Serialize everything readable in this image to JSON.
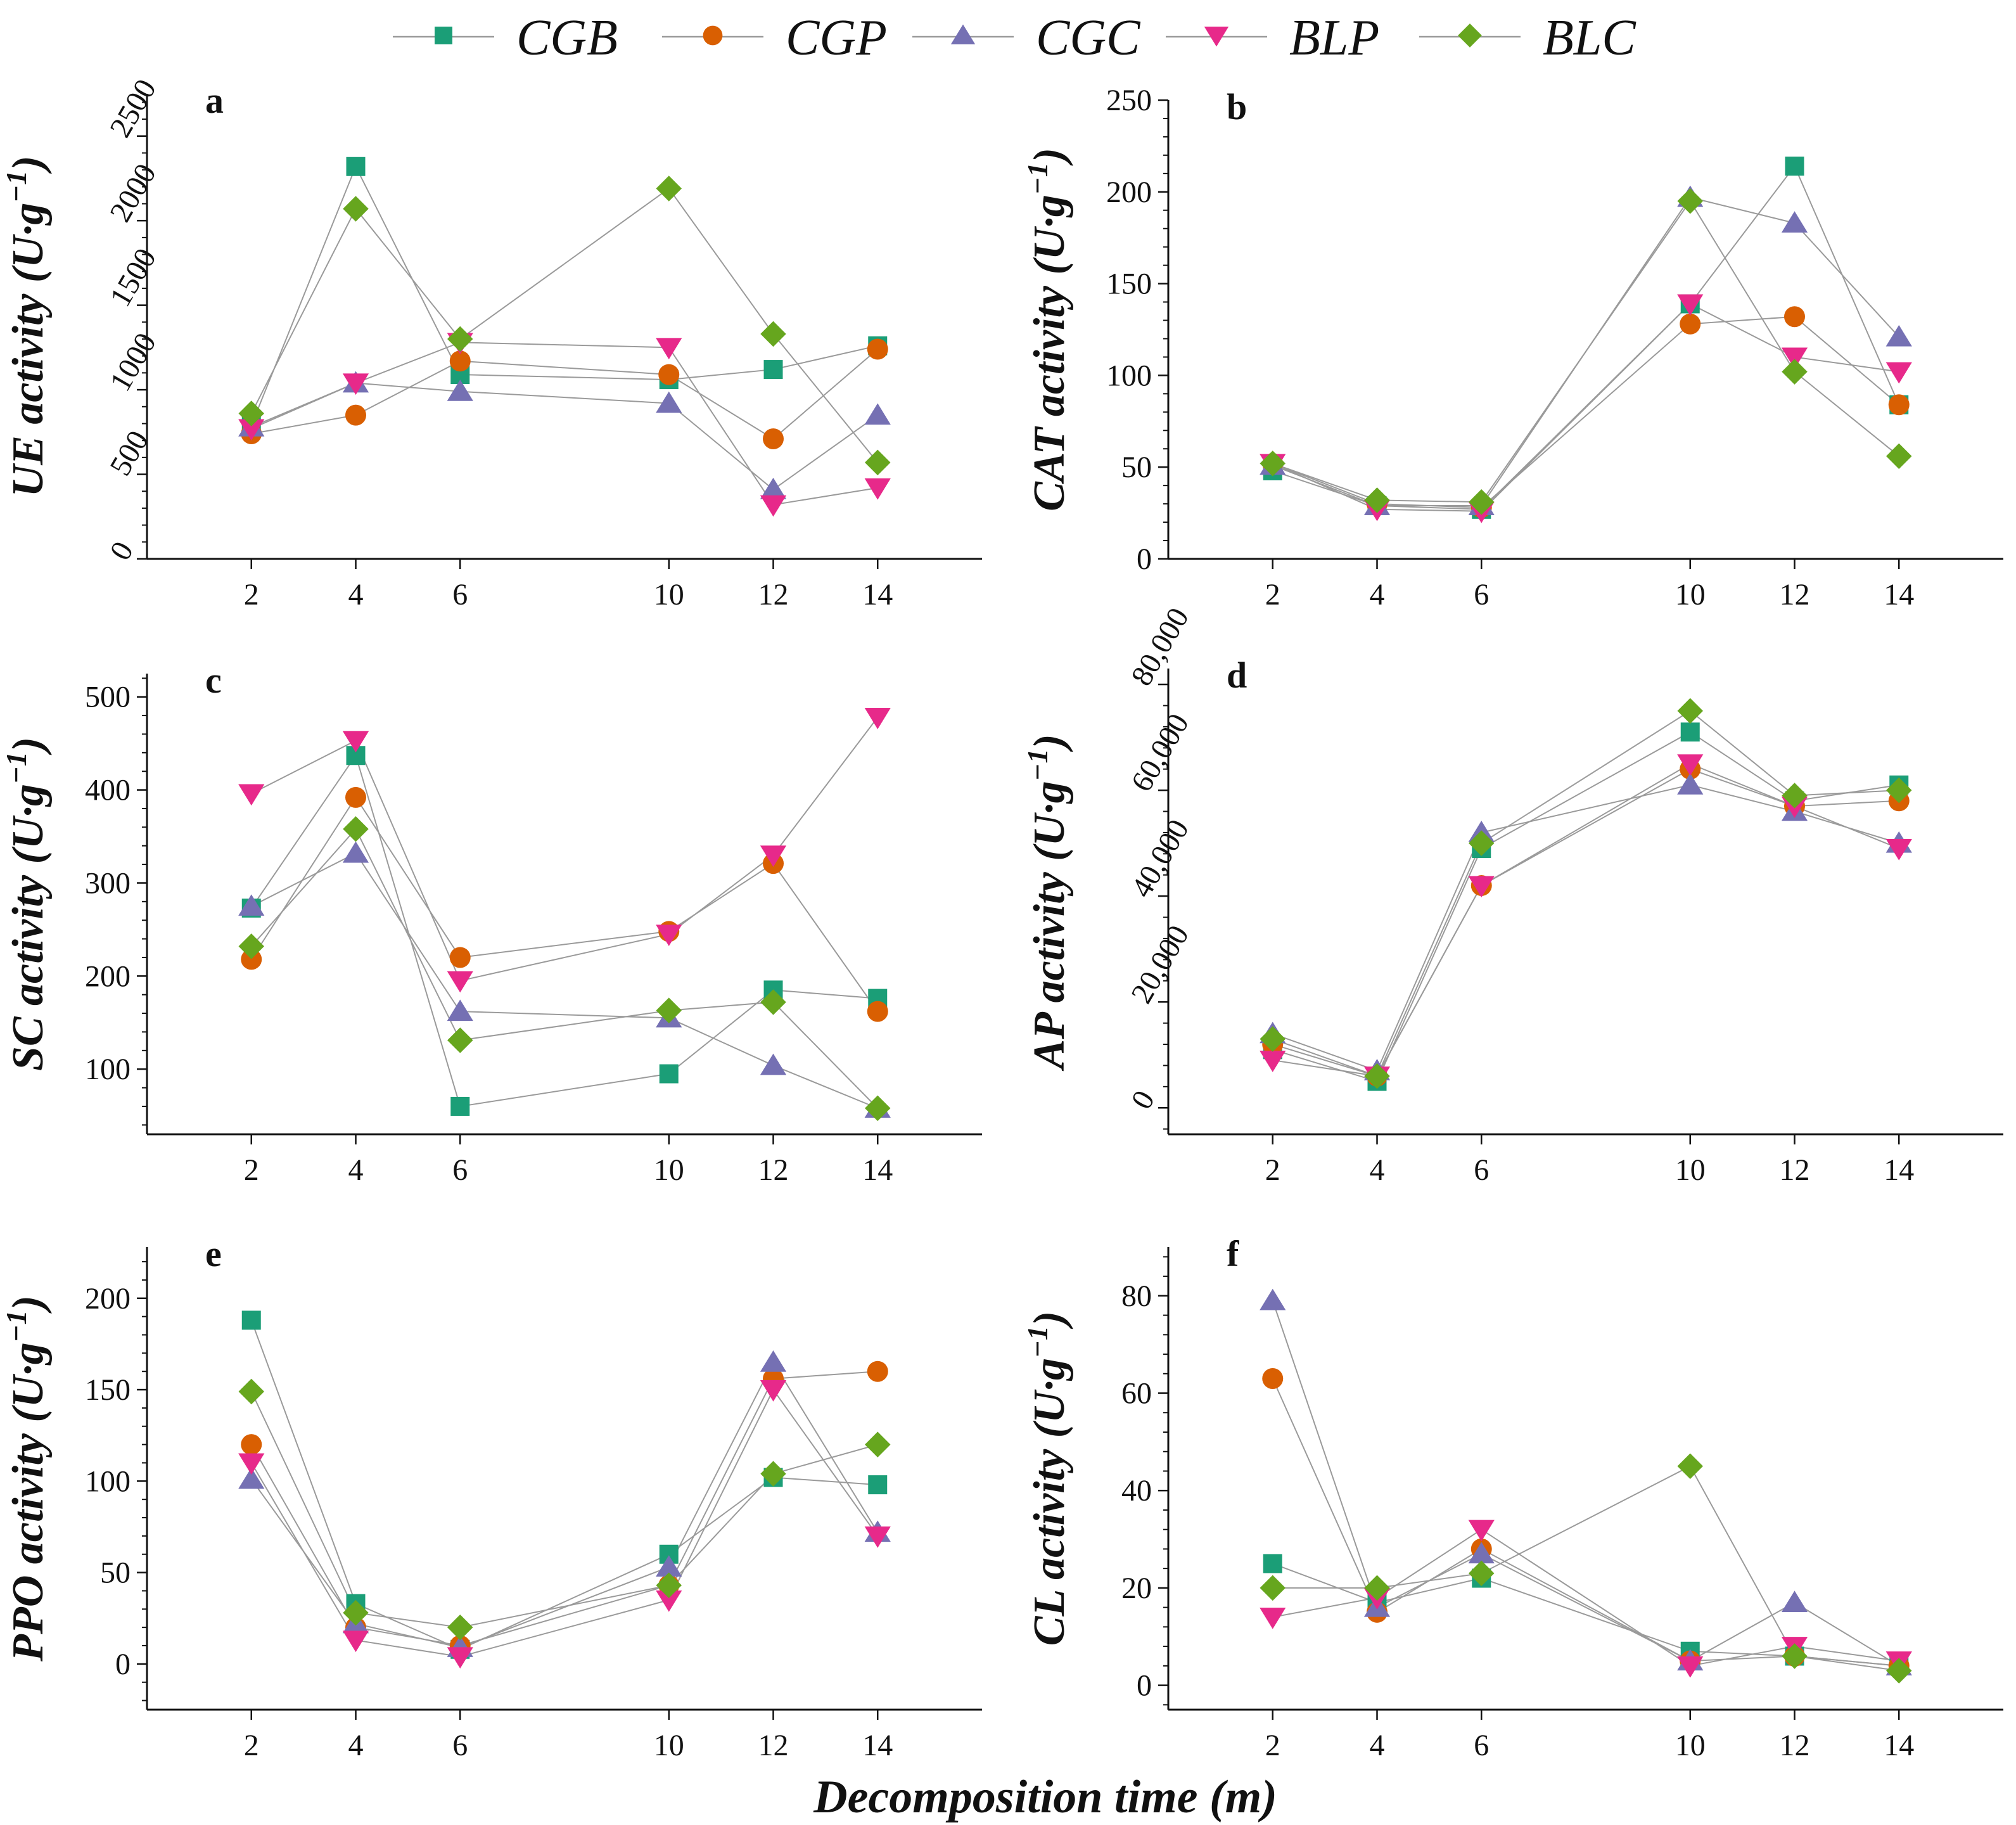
{
  "legend": [
    {
      "name": "CGB",
      "color": "#1B9E77",
      "marker": "square"
    },
    {
      "name": "CGP",
      "color": "#D95F02",
      "marker": "circle"
    },
    {
      "name": "CGC",
      "color": "#7570B3",
      "marker": "triangle-up"
    },
    {
      "name": "BLP",
      "color": "#E7298A",
      "marker": "triangle-down"
    },
    {
      "name": "BLC",
      "color": "#66A61E",
      "marker": "diamond"
    }
  ],
  "xlabel": "Decomposition time (m)",
  "chart_data": [
    {
      "type": "line",
      "panel": "a",
      "ylabel_var": "UE",
      "ylabel_rest": " activity (U·g",
      "ylabel_sup": "−1",
      "ylabel_close": ")",
      "x": [
        2,
        4,
        6,
        10,
        12,
        14
      ],
      "xlim": [
        0,
        16
      ],
      "ylim": [
        0,
        2750
      ],
      "yticks": [
        0,
        500,
        1000,
        1500,
        2000,
        2500
      ],
      "ytick_labels": [
        "0",
        "500",
        "1000",
        "1500",
        "2000",
        "2500"
      ],
      "rotated_ticks": true,
      "series": [
        {
          "name": "CGB",
          "values": [
            790,
            2320,
            1090,
            1060,
            1120,
            1260
          ]
        },
        {
          "name": "CGP",
          "values": [
            740,
            850,
            1170,
            1090,
            710,
            1240
          ]
        },
        {
          "name": "CGC",
          "values": [
            780,
            1040,
            990,
            920,
            410,
            850
          ]
        },
        {
          "name": "BLP",
          "values": [
            770,
            1040,
            1280,
            1250,
            320,
            420
          ]
        },
        {
          "name": "BLC",
          "values": [
            860,
            2070,
            1300,
            2190,
            1330,
            570
          ]
        }
      ]
    },
    {
      "type": "line",
      "panel": "b",
      "ylabel_var": "CAT",
      "ylabel_rest": " activity (U·g",
      "ylabel_sup": "−1",
      "ylabel_close": ")",
      "x": [
        2,
        4,
        6,
        10,
        12,
        14
      ],
      "xlim": [
        0,
        16
      ],
      "ylim": [
        0,
        250
      ],
      "yticks": [
        0,
        50,
        100,
        150,
        200,
        250
      ],
      "ytick_labels": [
        "0",
        "50",
        "100",
        "150",
        "200",
        "250"
      ],
      "rotated_ticks": false,
      "series": [
        {
          "name": "CGB",
          "values": [
            48,
            29,
            27,
            139,
            214,
            84
          ]
        },
        {
          "name": "CGP",
          "values": [
            52,
            30,
            28,
            128,
            132,
            84
          ]
        },
        {
          "name": "CGC",
          "values": [
            51,
            29,
            29,
            197,
            183,
            121
          ]
        },
        {
          "name": "BLP",
          "values": [
            52,
            27,
            26,
            139,
            110,
            102
          ]
        },
        {
          "name": "BLC",
          "values": [
            52,
            32,
            31,
            195,
            102,
            56
          ]
        }
      ]
    },
    {
      "type": "line",
      "panel": "c",
      "ylabel_var": "SC",
      "ylabel_rest": " activity (U·g",
      "ylabel_sup": "−1",
      "ylabel_close": ")",
      "x": [
        2,
        4,
        6,
        10,
        12,
        14
      ],
      "xlim": [
        0,
        16
      ],
      "ylim": [
        30,
        525
      ],
      "yticks": [
        100,
        200,
        300,
        400,
        500
      ],
      "ytick_labels": [
        "100",
        "200",
        "300",
        "400",
        "500"
      ],
      "rotated_ticks": false,
      "series": [
        {
          "name": "CGB",
          "values": [
            273,
            437,
            60,
            95,
            185,
            176
          ]
        },
        {
          "name": "CGP",
          "values": [
            218,
            392,
            220,
            248,
            321,
            162
          ]
        },
        {
          "name": "CGC",
          "values": [
            275,
            332,
            162,
            155,
            104,
            58
          ]
        },
        {
          "name": "BLP",
          "values": [
            396,
            453,
            195,
            245,
            330,
            478
          ]
        },
        {
          "name": "BLC",
          "values": [
            232,
            358,
            131,
            163,
            172,
            58
          ]
        }
      ]
    },
    {
      "type": "line",
      "panel": "d",
      "ylabel_var": "AP",
      "ylabel_rest": " activity (U·g",
      "ylabel_sup": "−1",
      "ylabel_close": ")",
      "x": [
        2,
        4,
        6,
        10,
        12,
        14
      ],
      "xlim": [
        0,
        16
      ],
      "ylim": [
        -5000,
        83000
      ],
      "yticks": [
        0,
        20000,
        40000,
        60000,
        80000
      ],
      "ytick_labels": [
        "0",
        "20,000",
        "40,000",
        "60,000",
        "80,000"
      ],
      "rotated_ticks": true,
      "series": [
        {
          "name": "CGB",
          "values": [
            11000,
            5000,
            49000,
            71000,
            58000,
            61000
          ]
        },
        {
          "name": "CGP",
          "values": [
            12000,
            6000,
            42000,
            64000,
            57000,
            58000
          ]
        },
        {
          "name": "CGC",
          "values": [
            14000,
            7000,
            52000,
            61000,
            56000,
            50000
          ]
        },
        {
          "name": "BLP",
          "values": [
            9000,
            6000,
            42000,
            65000,
            57000,
            49000
          ]
        },
        {
          "name": "BLC",
          "values": [
            13000,
            6000,
            50000,
            75000,
            59000,
            60000
          ]
        }
      ]
    },
    {
      "type": "line",
      "panel": "e",
      "ylabel_var": "PPO",
      "ylabel_rest": " activity (U·g",
      "ylabel_sup": "−1",
      "ylabel_close": ")",
      "x": [
        2,
        4,
        6,
        10,
        12,
        14
      ],
      "xlim": [
        0,
        16
      ],
      "ylim": [
        -25,
        228
      ],
      "yticks": [
        0,
        50,
        100,
        150,
        200
      ],
      "ytick_labels": [
        "0",
        "50",
        "100",
        "150",
        "200"
      ],
      "rotated_ticks": false,
      "series": [
        {
          "name": "CGB",
          "values": [
            188,
            33,
            8,
            60,
            102,
            98
          ]
        },
        {
          "name": "CGP",
          "values": [
            120,
            20,
            10,
            43,
            156,
            160
          ]
        },
        {
          "name": "CGC",
          "values": [
            101,
            22,
            9,
            53,
            165,
            72
          ]
        },
        {
          "name": "BLP",
          "values": [
            110,
            13,
            4,
            35,
            150,
            70
          ]
        },
        {
          "name": "BLC",
          "values": [
            149,
            28,
            20,
            43,
            104,
            120
          ]
        }
      ]
    },
    {
      "type": "line",
      "panel": "f",
      "ylabel_var": "CL",
      "ylabel_rest": " activity (U·g",
      "ylabel_sup": "−1",
      "ylabel_close": ")",
      "x": [
        2,
        4,
        6,
        10,
        12,
        14
      ],
      "xlim": [
        0,
        16
      ],
      "ylim": [
        -5,
        90
      ],
      "yticks": [
        0,
        20,
        40,
        60,
        80
      ],
      "ytick_labels": [
        "0",
        "20",
        "40",
        "60",
        "80"
      ],
      "rotated_ticks": false,
      "series": [
        {
          "name": "CGB",
          "values": [
            25,
            17,
            22,
            7,
            6,
            4
          ]
        },
        {
          "name": "CGP",
          "values": [
            63,
            15,
            28,
            5,
            6,
            4
          ]
        },
        {
          "name": "CGC",
          "values": [
            79,
            16,
            27,
            5,
            17,
            4
          ]
        },
        {
          "name": "BLP",
          "values": [
            14,
            18,
            32,
            4,
            8,
            5
          ]
        },
        {
          "name": "BLC",
          "values": [
            20,
            20,
            23,
            45,
            6,
            3
          ]
        }
      ]
    }
  ]
}
